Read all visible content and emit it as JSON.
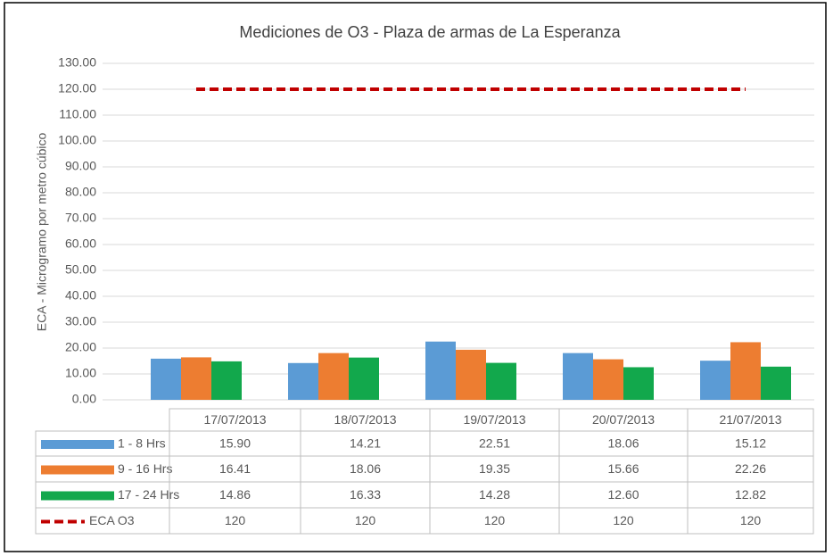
{
  "chart_data": {
    "type": "bar",
    "title": "Mediciones de O3 - Plaza de armas de La Esperanza",
    "y_label": "ECA - Microgramo por metro cúbico",
    "categories": [
      "17/07/2013",
      "18/07/2013",
      "19/07/2013",
      "20/07/2013",
      "21/07/2013"
    ],
    "series": [
      {
        "name": "1 - 8 Hrs",
        "type": "bar",
        "color": "#5b9bd5",
        "values": [
          15.9,
          14.21,
          22.51,
          18.06,
          15.12
        ],
        "value_labels": [
          "15.90",
          "14.21",
          "22.51",
          "18.06",
          "15.12"
        ]
      },
      {
        "name": "9 - 16 Hrs",
        "type": "bar",
        "color": "#ed7d31",
        "values": [
          16.41,
          18.06,
          19.35,
          15.66,
          22.26
        ],
        "value_labels": [
          "16.41",
          "18.06",
          "19.35",
          "15.66",
          "22.26"
        ]
      },
      {
        "name": "17 - 24 Hrs",
        "type": "bar",
        "color": "#12a84c",
        "values": [
          14.86,
          16.33,
          14.28,
          12.6,
          12.82
        ],
        "value_labels": [
          "14.86",
          "16.33",
          "14.28",
          "12.60",
          "12.82"
        ]
      },
      {
        "name": "ECA O3",
        "type": "line",
        "dashed": true,
        "color": "#c00000",
        "values": [
          120,
          120,
          120,
          120,
          120
        ]
      }
    ],
    "ylim": [
      0,
      130
    ],
    "yticks": [
      {
        "value": 0,
        "label": "0.00"
      },
      {
        "value": 10,
        "label": "10.00"
      },
      {
        "value": 20,
        "label": "20.00"
      },
      {
        "value": 30,
        "label": "30.00"
      },
      {
        "value": 40,
        "label": "40.00"
      },
      {
        "value": 50,
        "label": "50.00"
      },
      {
        "value": 60,
        "label": "60.00"
      },
      {
        "value": 70,
        "label": "70.00"
      },
      {
        "value": 80,
        "label": "80.00"
      },
      {
        "value": 90,
        "label": "90.00"
      },
      {
        "value": 100,
        "label": "100.00"
      },
      {
        "value": 110,
        "label": "110.00"
      },
      {
        "value": 120,
        "label": "120.00"
      },
      {
        "value": 130,
        "label": "130.00"
      }
    ],
    "grid": true,
    "data_table": true
  }
}
